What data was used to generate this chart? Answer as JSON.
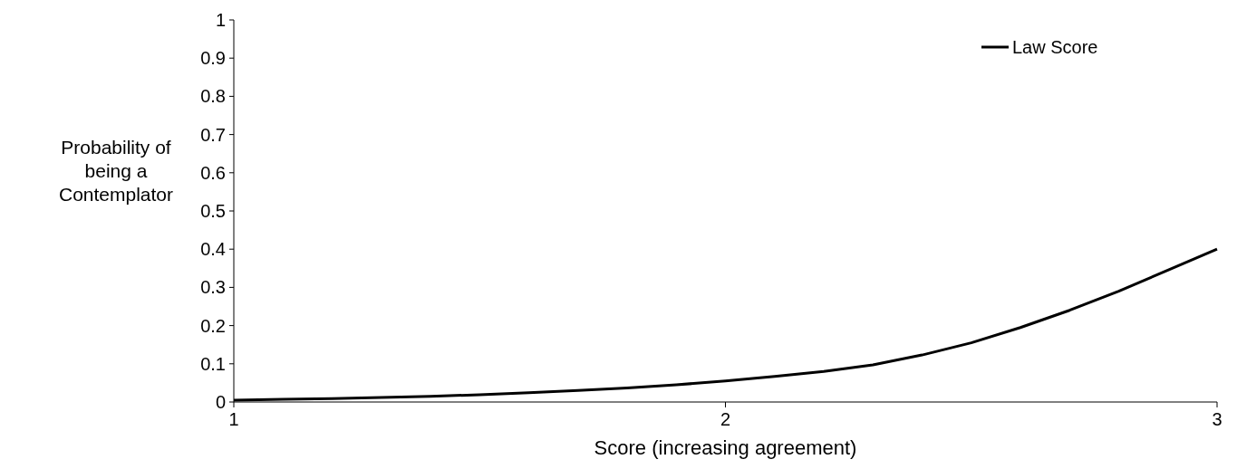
{
  "chart_data": {
    "type": "line",
    "xlabel": "Score (increasing agreement)",
    "ylabel": "Probability of being a Contemplator",
    "x": [
      1,
      1.1,
      1.2,
      1.3,
      1.4,
      1.5,
      1.6,
      1.7,
      1.8,
      1.9,
      2,
      2.1,
      2.2,
      2.3,
      2.4,
      2.5,
      2.6,
      2.7,
      2.8,
      2.9,
      3
    ],
    "series": [
      {
        "name": "Law Score",
        "color": "#000000",
        "values": [
          0.005,
          0.007,
          0.009,
          0.012,
          0.015,
          0.019,
          0.024,
          0.03,
          0.037,
          0.045,
          0.055,
          0.067,
          0.08,
          0.097,
          0.123,
          0.155,
          0.195,
          0.24,
          0.29,
          0.345,
          0.4
        ]
      }
    ],
    "xlim": [
      1,
      3
    ],
    "xticks": [
      1,
      2,
      3
    ],
    "ylim": [
      0,
      1
    ],
    "yticks": [
      0,
      0.1,
      0.2,
      0.3,
      0.4,
      0.5,
      0.6,
      0.7,
      0.8,
      0.9,
      1
    ],
    "grid": false,
    "legend": "top right",
    "marker": "none",
    "line_style": "solid"
  }
}
